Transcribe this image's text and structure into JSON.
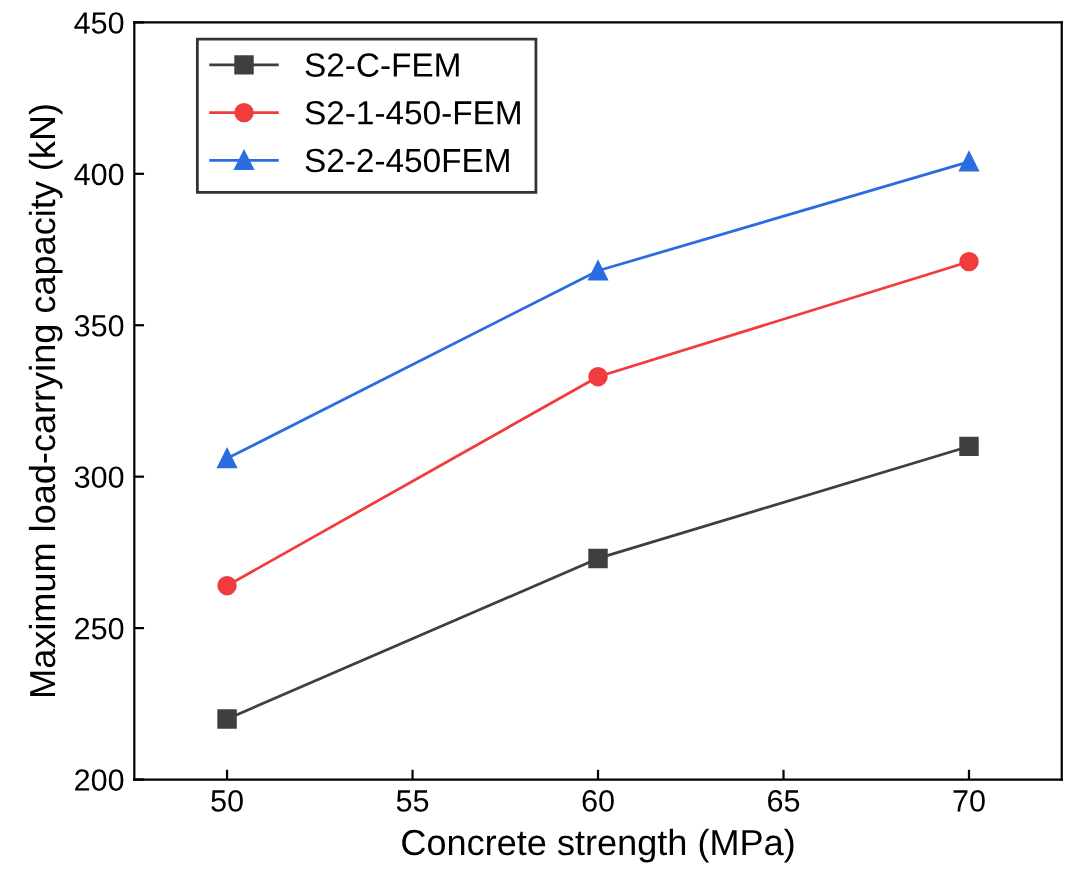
{
  "chart_data": {
    "type": "line",
    "xlabel": "Concrete strength (MPa)",
    "ylabel": "Maximum load-carrying capacity (kN)",
    "x": [
      50,
      60,
      70
    ],
    "series": [
      {
        "name": "S2-C-FEM",
        "color": "#3f3f3f",
        "marker": "square",
        "values": [
          220,
          273,
          310
        ]
      },
      {
        "name": "S2-1-450-FEM",
        "color": "#f03c3c",
        "marker": "circle",
        "values": [
          264,
          333,
          371
        ]
      },
      {
        "name": "S2-2-450FEM",
        "color": "#2b6de0",
        "marker": "triangle",
        "values": [
          306,
          368,
          404
        ]
      }
    ],
    "xlim": [
      47.5,
      72.5
    ],
    "xticks": [
      50,
      55,
      60,
      65,
      70
    ],
    "ylim": [
      200,
      450
    ],
    "yticks": [
      200,
      250,
      300,
      350,
      400,
      450
    ],
    "grid": false,
    "legend": "top left",
    "line_style": "solid"
  }
}
